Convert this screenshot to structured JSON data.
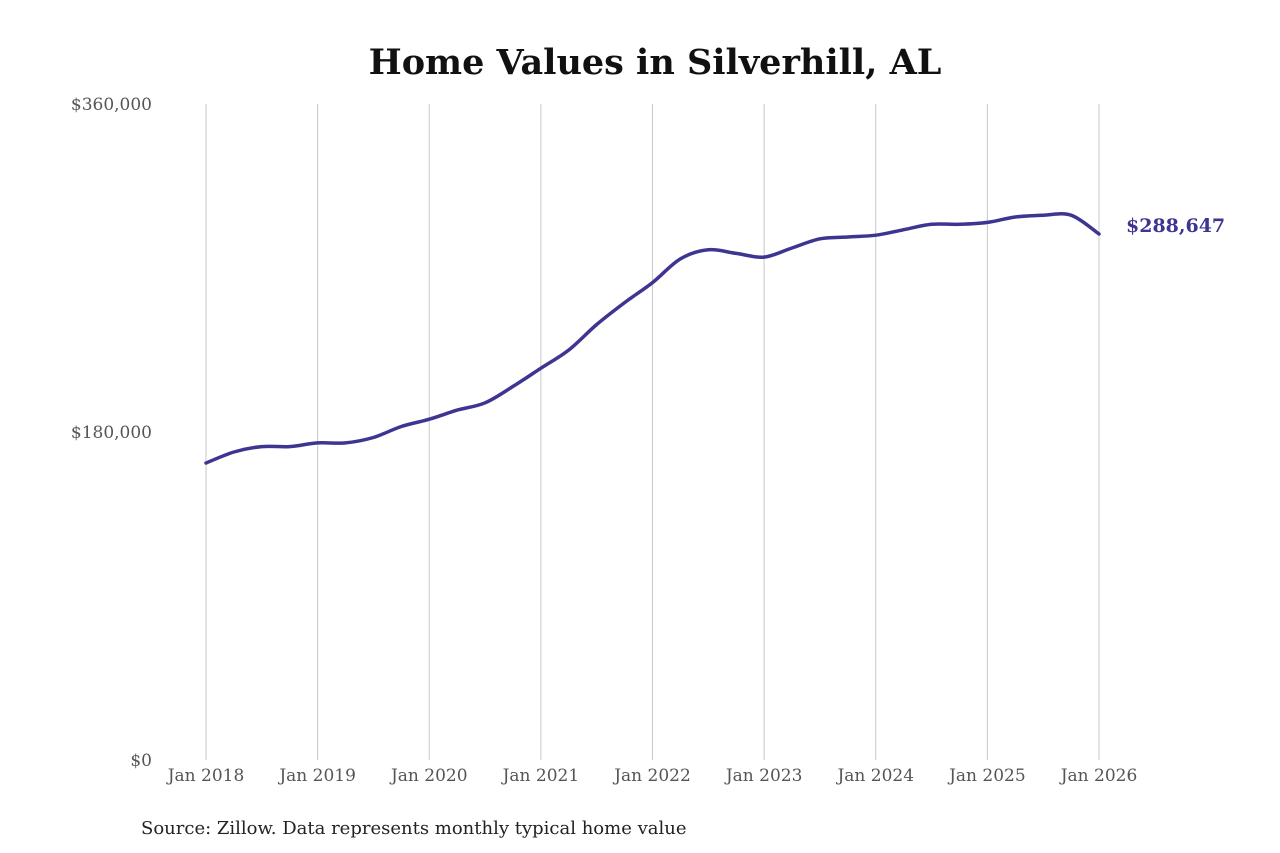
{
  "colors": {
    "line": "#3d3591",
    "grid": "#c8c8c8",
    "tick_text": "#555555"
  },
  "chart_data": {
    "type": "line",
    "title": "Home Values in Silverhill, AL",
    "xlabel": "",
    "ylabel": "",
    "ylim": [
      0,
      360000
    ],
    "xlim": [
      "2018-01",
      "2026-01"
    ],
    "grid": {
      "x": true,
      "y": false
    },
    "y_ticks": [
      {
        "value": 0,
        "label": "$0"
      },
      {
        "value": 180000,
        "label": "$180,000"
      },
      {
        "value": 360000,
        "label": "$360,000"
      }
    ],
    "x_ticks": [
      {
        "value": "2018-01",
        "label": "Jan 2018"
      },
      {
        "value": "2019-01",
        "label": "Jan 2019"
      },
      {
        "value": "2020-01",
        "label": "Jan 2020"
      },
      {
        "value": "2021-01",
        "label": "Jan 2021"
      },
      {
        "value": "2022-01",
        "label": "Jan 2022"
      },
      {
        "value": "2023-01",
        "label": "Jan 2023"
      },
      {
        "value": "2024-01",
        "label": "Jan 2024"
      },
      {
        "value": "2025-01",
        "label": "Jan 2025"
      },
      {
        "value": "2026-01",
        "label": "Jan 2026"
      }
    ],
    "series": [
      {
        "points": [
          {
            "x": "2018-01",
            "y": 163000
          },
          {
            "x": "2018-04",
            "y": 169000
          },
          {
            "x": "2018-07",
            "y": 172000
          },
          {
            "x": "2018-10",
            "y": 172000
          },
          {
            "x": "2019-01",
            "y": 174000
          },
          {
            "x": "2019-04",
            "y": 174000
          },
          {
            "x": "2019-07",
            "y": 177000
          },
          {
            "x": "2019-10",
            "y": 183000
          },
          {
            "x": "2020-01",
            "y": 187000
          },
          {
            "x": "2020-04",
            "y": 192000
          },
          {
            "x": "2020-07",
            "y": 196000
          },
          {
            "x": "2020-10",
            "y": 205000
          },
          {
            "x": "2021-01",
            "y": 215000
          },
          {
            "x": "2021-04",
            "y": 225000
          },
          {
            "x": "2021-07",
            "y": 239000
          },
          {
            "x": "2021-10",
            "y": 251000
          },
          {
            "x": "2022-01",
            "y": 262000
          },
          {
            "x": "2022-04",
            "y": 275000
          },
          {
            "x": "2022-07",
            "y": 280000
          },
          {
            "x": "2022-10",
            "y": 278000
          },
          {
            "x": "2023-01",
            "y": 276000
          },
          {
            "x": "2023-04",
            "y": 281000
          },
          {
            "x": "2023-07",
            "y": 286000
          },
          {
            "x": "2023-10",
            "y": 287000
          },
          {
            "x": "2024-01",
            "y": 288000
          },
          {
            "x": "2024-04",
            "y": 291000
          },
          {
            "x": "2024-07",
            "y": 294000
          },
          {
            "x": "2024-10",
            "y": 294000
          },
          {
            "x": "2025-01",
            "y": 295000
          },
          {
            "x": "2025-04",
            "y": 298000
          },
          {
            "x": "2025-07",
            "y": 299000
          },
          {
            "x": "2025-10",
            "y": 299000
          },
          {
            "x": "2026-01",
            "y": 288647
          }
        ],
        "end_label": "$288,647"
      }
    ]
  },
  "source_note": "Source: Zillow. Data represents monthly typical home value"
}
